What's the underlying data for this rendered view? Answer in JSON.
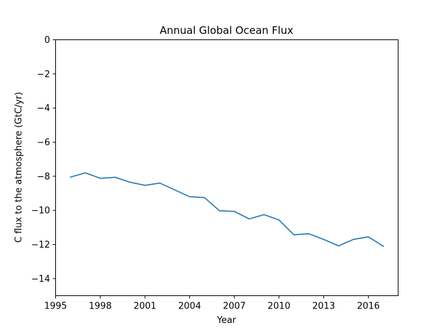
{
  "chart_data": {
    "type": "line",
    "title": "Annual Global Ocean Flux",
    "xlabel": "Year",
    "ylabel": "C flux to the atmosphere (GtC/yr)",
    "xlim": [
      1995,
      2018
    ],
    "ylim": [
      -15,
      0
    ],
    "x_ticks": [
      1995,
      1998,
      2001,
      2004,
      2007,
      2010,
      2013,
      2016
    ],
    "y_ticks": [
      0,
      -2,
      -4,
      -6,
      -8,
      -10,
      -12,
      -14
    ],
    "y_tick_labels": [
      "0",
      "−2",
      "−4",
      "−6",
      "−8",
      "−10",
      "−12",
      "−14"
    ],
    "grid": false,
    "legend": "none",
    "series": [
      {
        "color": "#1f77b4",
        "x": [
          1996,
          1997,
          1998,
          1999,
          2000,
          2001,
          2002,
          2003,
          2004,
          2005,
          2006,
          2007,
          2008,
          2009,
          2010,
          2011,
          2012,
          2013,
          2014,
          2015,
          2016,
          2017
        ],
        "y": [
          -8.05,
          -7.8,
          -8.12,
          -8.06,
          -8.35,
          -8.53,
          -8.4,
          -8.8,
          -9.2,
          -9.25,
          -10.02,
          -10.06,
          -10.5,
          -10.25,
          -10.56,
          -11.43,
          -11.37,
          -11.7,
          -12.08,
          -11.7,
          -11.55,
          -12.1
        ]
      }
    ]
  }
}
